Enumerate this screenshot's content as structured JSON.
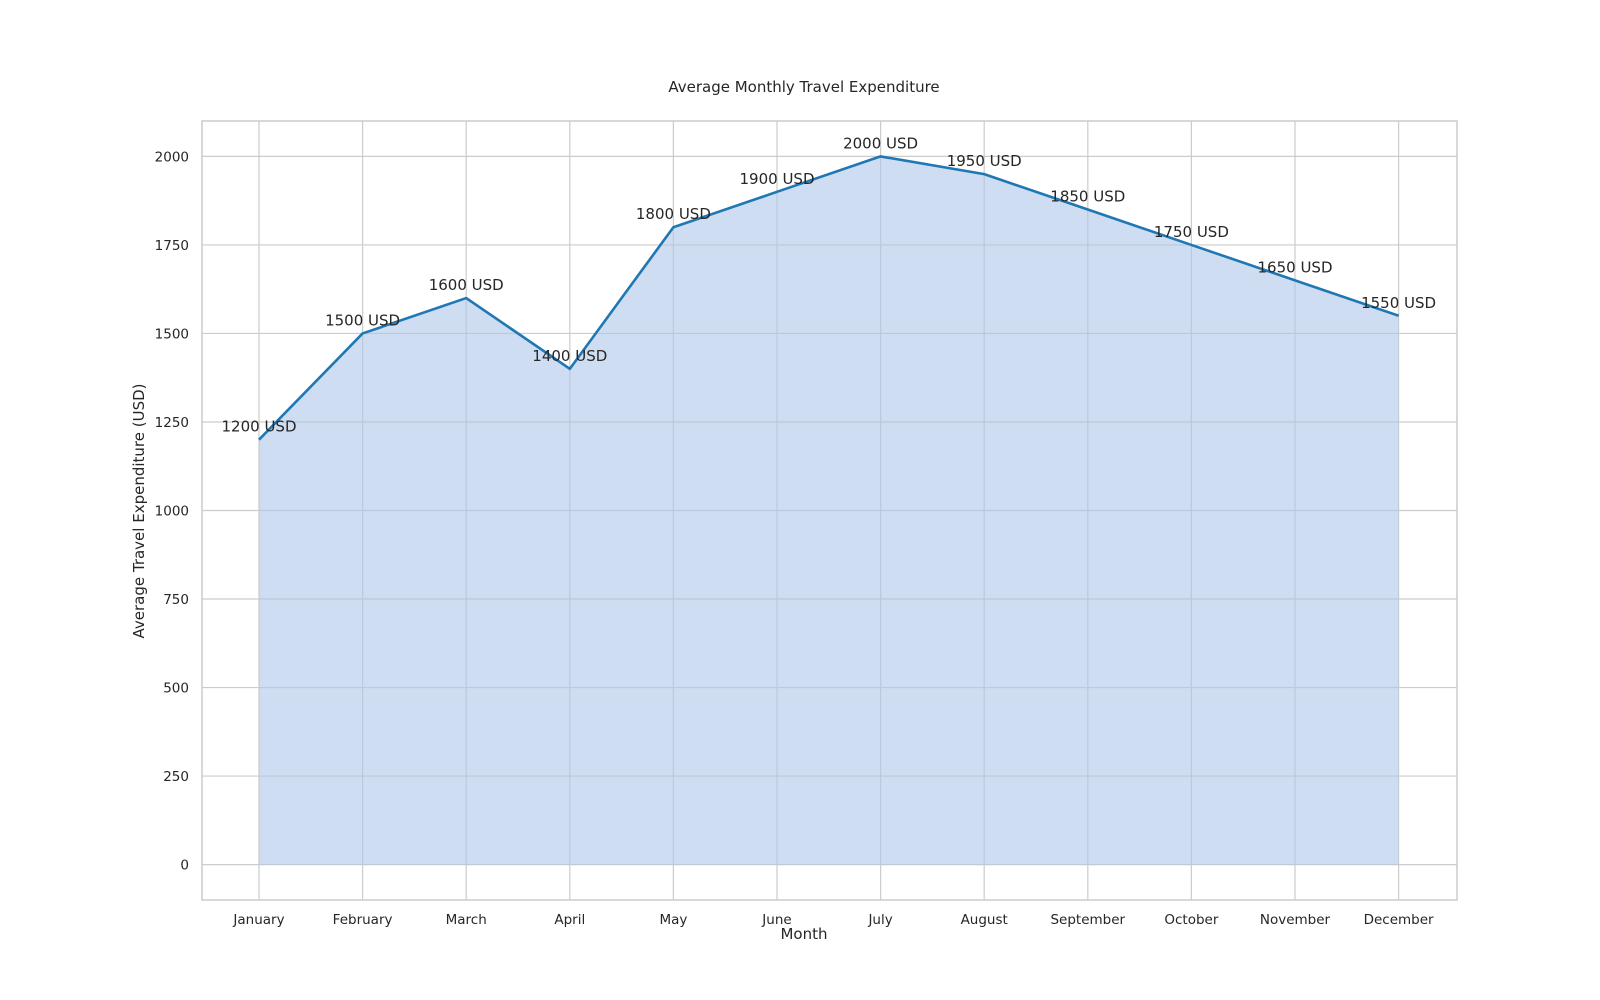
{
  "chart_data": {
    "type": "area",
    "title": "Average Monthly Travel Expenditure",
    "xlabel": "Month",
    "ylabel": "Average Travel Expenditure (USD)",
    "categories": [
      "January",
      "February",
      "March",
      "April",
      "May",
      "June",
      "July",
      "August",
      "September",
      "October",
      "November",
      "December"
    ],
    "values": [
      1200,
      1500,
      1600,
      1400,
      1800,
      1900,
      2000,
      1950,
      1850,
      1750,
      1650,
      1550
    ],
    "data_labels": [
      "1200 USD",
      "1500 USD",
      "1600 USD",
      "1400 USD",
      "1800 USD",
      "1900 USD",
      "2000 USD",
      "1950 USD",
      "1850 USD",
      "1750 USD",
      "1650 USD",
      "1550 USD"
    ],
    "yticks": [
      0,
      250,
      500,
      750,
      1000,
      1250,
      1500,
      1750,
      2000
    ],
    "ylim": [
      -100,
      2100
    ],
    "grid": true,
    "colors": {
      "line": "#1f77b4",
      "fill": "#aec7e8",
      "grid": "#cccccc",
      "frame": "#cccccc",
      "text": "#262626"
    }
  }
}
